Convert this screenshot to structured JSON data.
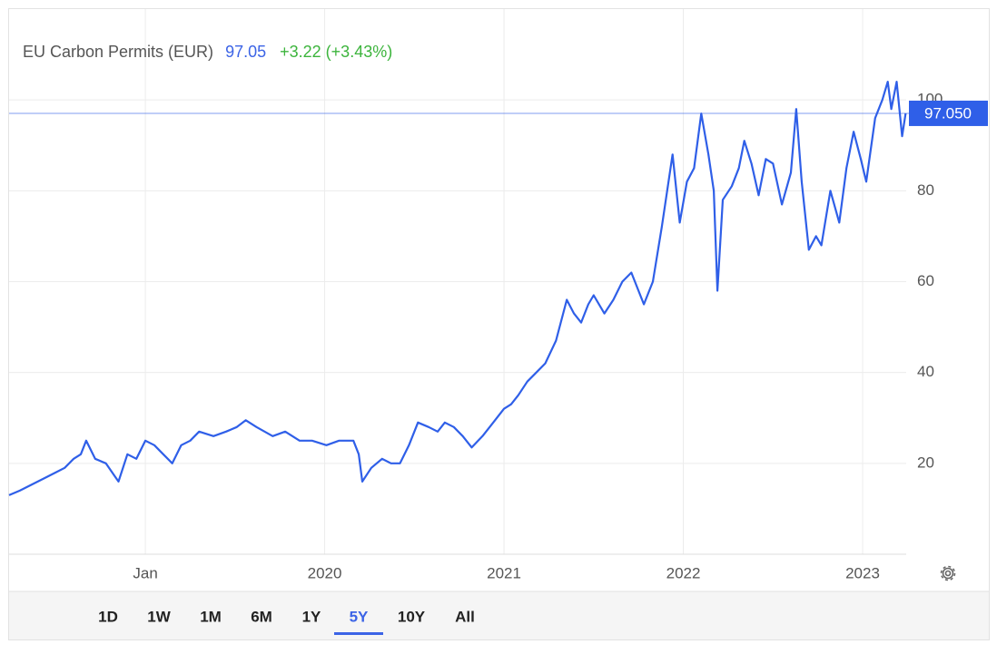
{
  "chart_data": {
    "type": "line",
    "title": "EU Carbon Permits (EUR)",
    "last_value": 97.05,
    "change": "+3.22 (+3.43%)",
    "last_value_label": "97.050",
    "xlim": [
      2018.24,
      2023.243
    ],
    "xticks": [
      {
        "value": 2019,
        "label": "Jan"
      },
      2020,
      2021,
      2022,
      2023
    ],
    "ylim": [
      0,
      120
    ],
    "yticks": [
      20,
      40,
      60,
      80,
      100
    ],
    "grid": true,
    "series": [
      {
        "color": "#2f5fe8",
        "x": [
          2018.24,
          2018.3,
          2018.35,
          2018.4,
          2018.45,
          2018.5,
          2018.55,
          2018.6,
          2018.64,
          2018.67,
          2018.72,
          2018.78,
          2018.85,
          2018.9,
          2018.95,
          2019.0,
          2019.05,
          2019.1,
          2019.15,
          2019.2,
          2019.25,
          2019.3,
          2019.38,
          2019.45,
          2019.51,
          2019.56,
          2019.62,
          2019.71,
          2019.78,
          2019.86,
          2019.93,
          2020.01,
          2020.08,
          2020.16,
          2020.19,
          2020.21,
          2020.26,
          2020.32,
          2020.37,
          2020.42,
          2020.47,
          2020.52,
          2020.58,
          2020.63,
          2020.67,
          2020.72,
          2020.77,
          2020.82,
          2020.88,
          2020.94,
          2021.0,
          2021.04,
          2021.08,
          2021.13,
          2021.18,
          2021.23,
          2021.29,
          2021.35,
          2021.39,
          2021.43,
          2021.47,
          2021.5,
          2021.56,
          2021.61,
          2021.66,
          2021.71,
          2021.78,
          2021.83,
          2021.88,
          2021.94,
          2021.98,
          2022.02,
          2022.06,
          2022.1,
          2022.14,
          2022.17,
          2022.19,
          2022.22,
          2022.27,
          2022.31,
          2022.34,
          2022.38,
          2022.42,
          2022.46,
          2022.5,
          2022.55,
          2022.6,
          2022.63,
          2022.66,
          2022.7,
          2022.74,
          2022.77,
          2022.82,
          2022.87,
          2022.91,
          2022.95,
          2022.99,
          2023.02,
          2023.07,
          2023.11,
          2023.14,
          2023.16,
          2023.19,
          2023.22,
          2023.24
        ],
        "values": [
          13,
          14,
          15,
          16,
          17,
          18,
          19,
          21,
          22,
          25,
          21,
          20,
          16,
          22,
          21,
          25,
          24,
          22,
          20,
          24,
          25,
          27,
          26,
          27,
          28,
          29.5,
          28,
          26,
          27,
          25,
          25,
          24,
          25,
          25,
          22,
          16,
          19,
          21,
          20,
          20,
          24,
          29,
          28,
          27,
          29,
          28,
          26,
          23.5,
          26,
          29,
          32,
          33,
          35,
          38,
          40,
          42,
          47,
          56,
          53,
          51,
          55,
          57,
          53,
          56,
          60,
          62,
          55,
          60,
          72,
          88,
          73,
          82,
          85,
          97,
          88,
          80,
          58,
          78,
          81,
          85,
          91,
          86,
          79,
          87,
          86,
          77,
          84,
          98,
          82,
          67,
          70,
          68,
          80,
          73,
          85,
          93,
          87,
          82,
          96,
          100,
          104,
          98,
          104,
          92,
          97.05
        ]
      }
    ],
    "range_buttons": [
      "1D",
      "1W",
      "1M",
      "6M",
      "1Y",
      "5Y",
      "10Y",
      "All"
    ],
    "selected_range_index": 5
  }
}
